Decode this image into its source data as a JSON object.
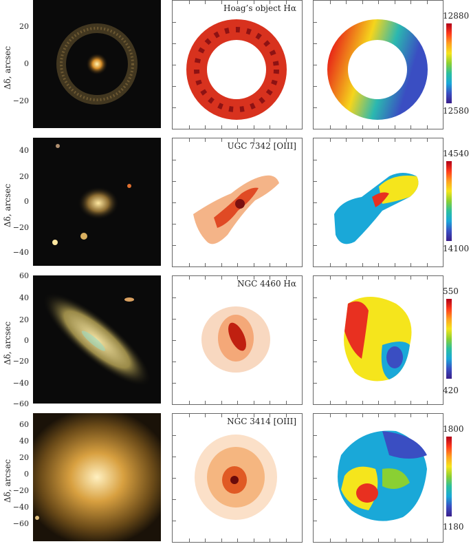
{
  "y_axis_label": "Δδ, arcsec",
  "panels": [
    {
      "title": "Hoag’s object Hα",
      "yticks": [
        "20",
        "0",
        "−20"
      ],
      "cbar_max": "12880",
      "cbar_min": "12580"
    },
    {
      "title": "UGC 7342 [OIII]",
      "yticks": [
        "40",
        "20",
        "0",
        "−20",
        "−40"
      ],
      "cbar_max": "14540",
      "cbar_min": "14100"
    },
    {
      "title": "NGC 4460 Hα",
      "yticks": [
        "60",
        "40",
        "20",
        "0",
        "−20",
        "−40",
        "−60"
      ],
      "cbar_max": "550",
      "cbar_min": "420"
    },
    {
      "title": "NGC 3414 [OIII]",
      "yticks": [
        "60",
        "40",
        "20",
        "0",
        "−20",
        "−40",
        "−60"
      ],
      "cbar_max": "1800",
      "cbar_min": "1180"
    }
  ],
  "colorbar_colors": [
    "#b00018",
    "#ff3a1c",
    "#ffa020",
    "#f5e51c",
    "#8ad033",
    "#2bbf9e",
    "#1aa8d8",
    "#3a4ec2",
    "#3a1e8a"
  ]
}
